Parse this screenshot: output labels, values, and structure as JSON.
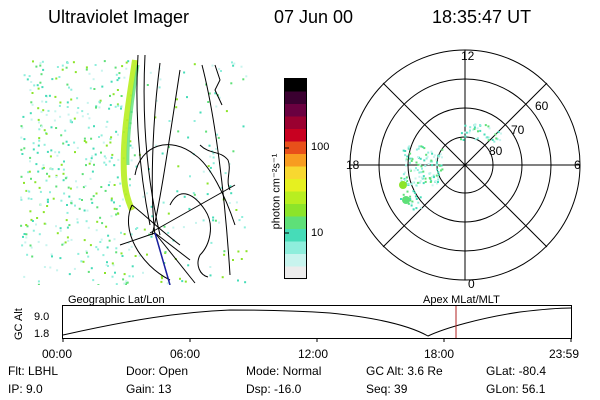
{
  "header": {
    "title": "Ultraviolet Imager",
    "date": "07 Jun 00",
    "time": "18:35:47 UT"
  },
  "colorbar": {
    "unit_label": "photon cm⁻²s⁻¹",
    "ticks": [
      "100",
      "10"
    ],
    "colors": [
      "#000000",
      "#3a0030",
      "#6a0040",
      "#9a0030",
      "#c80020",
      "#e8501a",
      "#f89c20",
      "#f8d830",
      "#e6f020",
      "#b8ee20",
      "#8ce42a",
      "#5ee078",
      "#46dcb8",
      "#8eeedc",
      "#c8f4ee",
      "#ececec"
    ]
  },
  "geo_panel": {
    "label": "Geographic Lat/Lon"
  },
  "polar_panel": {
    "label": "Apex MLat/MLT",
    "mlt_labels": {
      "top": "12",
      "left": "18",
      "right": "6",
      "bottom": "0"
    },
    "lat_labels": [
      "60",
      "70",
      "80"
    ]
  },
  "altitude_plot": {
    "ylabel": "GC Alt",
    "yticks": [
      "9.0",
      "1.8"
    ],
    "xticks": [
      "00:00",
      "06:00",
      "12:00",
      "18:00",
      "23:59"
    ],
    "marker_color": "#b02020"
  },
  "info": {
    "flt": "Flt: LBHL",
    "ip": "IP:  9.0",
    "door": "Door: Open",
    "gain": "Gain: 13",
    "mode": "Mode: Normal",
    "dsp": "Dsp:   -16.0",
    "gcalt": "GC Alt: 3.6 Re",
    "seq": "Seq: 39",
    "glat": "GLat:  -80.4",
    "glon": "GLon:  56.1"
  }
}
